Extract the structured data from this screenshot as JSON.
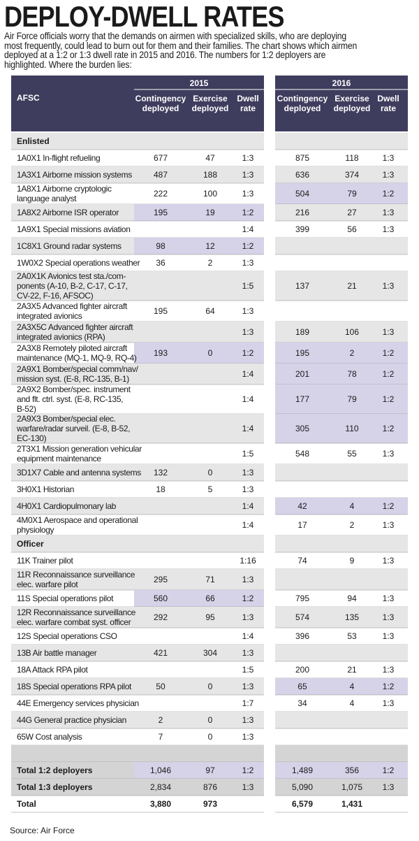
{
  "title": "DEPLOY-DWELL RATES",
  "intro": "Air Force officials worry that the demands on airmen with specialized skills, who are deploying most frequently, could lead to burn out for them and their families. The chart shows which airmen deployed at a 1:2 or 1:3 dwell rate in 2015 and 2016. The numbers for 1:2 deployers are highlighted. Where the burden lies:",
  "source": "Source: Air Force",
  "colors": {
    "header": "#3f3d5e",
    "zebra": "#e6e6e6",
    "highlight": "#d6d2e8",
    "total_band": "#d4d4d4",
    "rule": "#8a8a8a"
  },
  "chart_data": {
    "type": "table",
    "title": "DEPLOY-DWELL RATES",
    "years": [
      "2015",
      "2016"
    ],
    "header": {
      "afsc": "AFSC",
      "contingency": [
        "Contingency",
        "deployed"
      ],
      "exercise": [
        "Exercise",
        "deployed"
      ],
      "dwell": [
        "Dwell",
        "rate"
      ]
    },
    "rows": [
      {
        "kind": "section",
        "label": [
          "Enlisted"
        ]
      },
      {
        "label": [
          "1A0X1 In-flight refueling"
        ],
        "y2015": {
          "c": "677",
          "e": "47",
          "d": "1:3",
          "hl": false
        },
        "y2016": {
          "c": "875",
          "e": "118",
          "d": "1:3",
          "hl": false
        }
      },
      {
        "label": [
          "1A3X1 Airborne mission systems"
        ],
        "y2015": {
          "c": "487",
          "e": "188",
          "d": "1:3",
          "hl": false
        },
        "y2016": {
          "c": "636",
          "e": "374",
          "d": "1:3",
          "hl": false
        }
      },
      {
        "label": [
          "1A8X1 Airborne cryptologic",
          "language analyst"
        ],
        "y2015": {
          "c": "222",
          "e": "100",
          "d": "1:3",
          "hl": false
        },
        "y2016": {
          "c": "504",
          "e": "79",
          "d": "1:2",
          "hl": true
        }
      },
      {
        "label": [
          "1A8X2 Airborne ISR operator"
        ],
        "y2015": {
          "c": "195",
          "e": "19",
          "d": "1:2",
          "hl": true
        },
        "y2016": {
          "c": "216",
          "e": "27",
          "d": "1:3",
          "hl": false
        }
      },
      {
        "label": [
          "1A9X1 Special missions aviation"
        ],
        "y2015": {
          "c": "",
          "e": "",
          "d": "1:4",
          "hl": false
        },
        "y2016": {
          "c": "399",
          "e": "56",
          "d": "1:3",
          "hl": false
        }
      },
      {
        "label": [
          "1C8X1 Ground radar systems"
        ],
        "y2015": {
          "c": "98",
          "e": "12",
          "d": "1:2",
          "hl": true
        },
        "y2016": {
          "c": "",
          "e": "",
          "d": "",
          "hl": false
        }
      },
      {
        "label": [
          "1W0X2 Special operations weather"
        ],
        "y2015": {
          "c": "36",
          "e": "2",
          "d": "1:3",
          "hl": false
        },
        "y2016": {
          "c": "",
          "e": "",
          "d": "",
          "hl": false
        }
      },
      {
        "label": [
          "2A0X1K Avionics test sta./com-",
          "ponents (A-10, B-2, C-17, C-17,",
          "CV-22, F-16, AFSOC)"
        ],
        "y2015": {
          "c": "",
          "e": "",
          "d": "1:5",
          "hl": false
        },
        "y2016": {
          "c": "137",
          "e": "21",
          "d": "1:3",
          "hl": false
        }
      },
      {
        "label": [
          "2A3X5 Advanced fighter aircraft",
          "integrated avionics"
        ],
        "y2015": {
          "c": "195",
          "e": "64",
          "d": "1:3",
          "hl": false
        },
        "y2016": {
          "c": "",
          "e": "",
          "d": "",
          "hl": false
        }
      },
      {
        "label": [
          "2A3X5C Advanced fighter aircraft",
          "integrated avionics (RPA)"
        ],
        "y2015": {
          "c": "",
          "e": "",
          "d": "1:3",
          "hl": false
        },
        "y2016": {
          "c": "189",
          "e": "106",
          "d": "1:3",
          "hl": false
        }
      },
      {
        "label": [
          "2A3X8 Remotely piloted aircraft",
          "maintenance (MQ-1, MQ-9, RQ-4)"
        ],
        "y2015": {
          "c": "193",
          "e": "0",
          "d": "1:2",
          "hl": true
        },
        "y2016": {
          "c": "195",
          "e": "2",
          "d": "1:2",
          "hl": true
        }
      },
      {
        "label": [
          "2A9X1 Bomber/special comm/nav/",
          "mission syst. (E-8, RC-135, B-1)"
        ],
        "y2015": {
          "c": "",
          "e": "",
          "d": "1:4",
          "hl": false
        },
        "y2016": {
          "c": "201",
          "e": "78",
          "d": "1:2",
          "hl": true
        }
      },
      {
        "label": [
          "2A9X2 Bomber/spec. instrument",
          "and flt. ctrl. syst. (E-8, RC-135,",
          "B-52)"
        ],
        "y2015": {
          "c": "",
          "e": "",
          "d": "1:4",
          "hl": false
        },
        "y2016": {
          "c": "177",
          "e": "79",
          "d": "1:2",
          "hl": true
        }
      },
      {
        "label": [
          "2A9X3 Bomber/special elec.",
          "warfare/radar surveil. (E-8, B-52,",
          "EC-130)"
        ],
        "y2015": {
          "c": "",
          "e": "",
          "d": "1:4",
          "hl": false
        },
        "y2016": {
          "c": "305",
          "e": "110",
          "d": "1:2",
          "hl": true
        }
      },
      {
        "label": [
          "2T3X1 Mission generation vehicular",
          "equipment maintenance"
        ],
        "y2015": {
          "c": "",
          "e": "",
          "d": "1:5",
          "hl": false
        },
        "y2016": {
          "c": "548",
          "e": "55",
          "d": "1:3",
          "hl": false
        }
      },
      {
        "label": [
          "3D1X7 Cable and antenna systems"
        ],
        "y2015": {
          "c": "132",
          "e": "0",
          "d": "1:3",
          "hl": false
        },
        "y2016": {
          "c": "",
          "e": "",
          "d": "",
          "hl": false
        }
      },
      {
        "label": [
          "3H0X1 Historian"
        ],
        "y2015": {
          "c": "18",
          "e": "5",
          "d": "1:3",
          "hl": false
        },
        "y2016": {
          "c": "",
          "e": "",
          "d": "",
          "hl": false
        }
      },
      {
        "label": [
          "4H0X1 Cardiopulmonary lab"
        ],
        "y2015": {
          "c": "",
          "e": "",
          "d": "1:4",
          "hl": false
        },
        "y2016": {
          "c": "42",
          "e": "4",
          "d": "1:2",
          "hl": true
        }
      },
      {
        "label": [
          "4M0X1 Aerospace and operational",
          "physiology"
        ],
        "y2015": {
          "c": "",
          "e": "",
          "d": "1:4",
          "hl": false
        },
        "y2016": {
          "c": "17",
          "e": "2",
          "d": "1:3",
          "hl": false
        }
      },
      {
        "kind": "section",
        "label": [
          "Officer"
        ]
      },
      {
        "label": [
          "11K Trainer pilot"
        ],
        "y2015": {
          "c": "",
          "e": "",
          "d": "1:16",
          "hl": false
        },
        "y2016": {
          "c": "74",
          "e": "9",
          "d": "1:3",
          "hl": false
        }
      },
      {
        "label": [
          "11R Reconnaissance surveillance",
          "elec. warfare pilot"
        ],
        "y2015": {
          "c": "295",
          "e": "71",
          "d": "1:3",
          "hl": false
        },
        "y2016": {
          "c": "",
          "e": "",
          "d": "",
          "hl": false
        }
      },
      {
        "label": [
          "11S Special operations pilot"
        ],
        "y2015": {
          "c": "560",
          "e": "66",
          "d": "1:2",
          "hl": true
        },
        "y2016": {
          "c": "795",
          "e": "94",
          "d": "1:3",
          "hl": false
        }
      },
      {
        "label": [
          "12R Reconnaissance surveillance",
          "elec. warfare combat syst. officer"
        ],
        "y2015": {
          "c": "292",
          "e": "95",
          "d": "1:3",
          "hl": false
        },
        "y2016": {
          "c": "574",
          "e": "135",
          "d": "1:3",
          "hl": false
        }
      },
      {
        "label": [
          "12S Special operations CSO"
        ],
        "y2015": {
          "c": "",
          "e": "",
          "d": "1:4",
          "hl": false
        },
        "y2016": {
          "c": "396",
          "e": "53",
          "d": "1:3",
          "hl": false
        }
      },
      {
        "label": [
          "13B Air battle manager"
        ],
        "y2015": {
          "c": "421",
          "e": "304",
          "d": "1:3",
          "hl": false
        },
        "y2016": {
          "c": "",
          "e": "",
          "d": "",
          "hl": false
        }
      },
      {
        "label": [
          "18A Attack RPA pilot"
        ],
        "y2015": {
          "c": "",
          "e": "",
          "d": "1:5",
          "hl": false
        },
        "y2016": {
          "c": "200",
          "e": "21",
          "d": "1:3",
          "hl": false
        }
      },
      {
        "label": [
          "18S Special operations RPA pilot"
        ],
        "y2015": {
          "c": "50",
          "e": "0",
          "d": "1:3",
          "hl": false
        },
        "y2016": {
          "c": "65",
          "e": "4",
          "d": "1:2",
          "hl": true
        }
      },
      {
        "label": [
          "44E Emergency services physician"
        ],
        "y2015": {
          "c": "",
          "e": "",
          "d": "1:7",
          "hl": false
        },
        "y2016": {
          "c": "34",
          "e": "4",
          "d": "1:3",
          "hl": false
        }
      },
      {
        "label": [
          "44G General practice physician"
        ],
        "y2015": {
          "c": "2",
          "e": "0",
          "d": "1:3",
          "hl": false
        },
        "y2016": {
          "c": "",
          "e": "",
          "d": "",
          "hl": false
        }
      },
      {
        "label": [
          "65W Cost analysis"
        ],
        "y2015": {
          "c": "7",
          "e": "0",
          "d": "1:3",
          "hl": false
        },
        "y2016": {
          "c": "",
          "e": "",
          "d": "",
          "hl": false
        }
      },
      {
        "kind": "blank",
        "label": [
          ""
        ]
      },
      {
        "kind": "total",
        "label": [
          "Total 1:2 deployers"
        ],
        "y2015": {
          "c": "1,046",
          "e": "97",
          "d": "1:2",
          "hl": true
        },
        "y2016": {
          "c": "1,489",
          "e": "356",
          "d": "1:2",
          "hl": true
        }
      },
      {
        "kind": "total",
        "label": [
          "Total 1:3 deployers"
        ],
        "y2015": {
          "c": "2,834",
          "e": "876",
          "d": "1:3",
          "hl": false
        },
        "y2016": {
          "c": "5,090",
          "e": "1,075",
          "d": "1:3",
          "hl": false
        }
      },
      {
        "kind": "grand",
        "label": [
          "Total"
        ],
        "y2015": {
          "c": "3,880",
          "e": "973",
          "d": "",
          "hl": false
        },
        "y2016": {
          "c": "6,579",
          "e": "1,431",
          "d": "",
          "hl": false
        }
      }
    ]
  }
}
